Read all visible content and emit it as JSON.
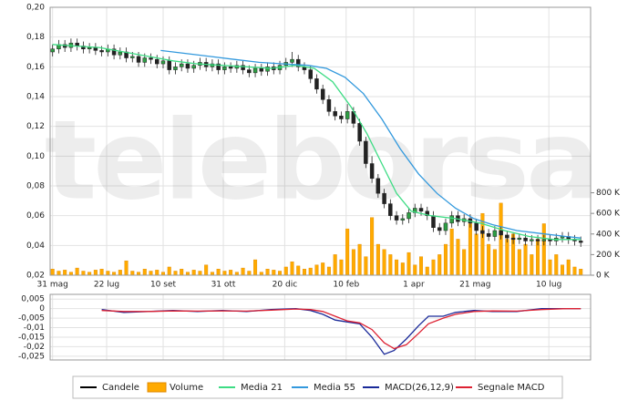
{
  "chart_data": [
    {
      "type": "candlestick",
      "watermark": "teleborsa",
      "grid": true,
      "xlim": [
        0,
        440
      ],
      "xticks": [
        {
          "value": 2,
          "label": "31 mag"
        },
        {
          "value": 46,
          "label": "22 lug"
        },
        {
          "value": 92,
          "label": "10 set"
        },
        {
          "value": 141,
          "label": "31 ott"
        },
        {
          "value": 191,
          "label": "20 dic"
        },
        {
          "value": 241,
          "label": "10 feb"
        },
        {
          "value": 296,
          "label": "1 apr"
        },
        {
          "value": 346,
          "label": "21 mag"
        },
        {
          "value": 406,
          "label": "10 lug"
        }
      ],
      "ylim": [
        0.02,
        0.2
      ],
      "yticks": [
        {
          "value": 0.02,
          "label": "0,02"
        },
        {
          "value": 0.04,
          "label": "0,04"
        },
        {
          "value": 0.06,
          "label": "0,06"
        },
        {
          "value": 0.08,
          "label": "0,08"
        },
        {
          "value": 0.1,
          "label": "0,10"
        },
        {
          "value": 0.12,
          "label": "0,12"
        },
        {
          "value": 0.14,
          "label": "0,14"
        },
        {
          "value": 0.16,
          "label": "0,16"
        },
        {
          "value": 0.18,
          "label": "0,18"
        },
        {
          "value": 0.2,
          "label": "0,20"
        }
      ],
      "y2lim": [
        0,
        2600000
      ],
      "y2ticks": [
        {
          "value": 0,
          "label": "0 K"
        },
        {
          "value": 200000,
          "label": "200 K"
        },
        {
          "value": 400000,
          "label": "400 K"
        },
        {
          "value": 600000,
          "label": "600 K"
        },
        {
          "value": 800000,
          "label": "800 K"
        }
      ],
      "series": [
        {
          "name": "Candele",
          "type": "candlestick",
          "color": "#000000",
          "color_up": "#2e9e44",
          "color_down": "#222222",
          "x": [
            2,
            7,
            12,
            17,
            22,
            27,
            32,
            37,
            42,
            47,
            52,
            57,
            62,
            67,
            72,
            77,
            82,
            87,
            92,
            97,
            102,
            107,
            112,
            117,
            122,
            127,
            132,
            137,
            142,
            147,
            152,
            157,
            162,
            167,
            172,
            177,
            182,
            187,
            192,
            197,
            202,
            207,
            212,
            217,
            222,
            227,
            232,
            237,
            242,
            247,
            252,
            257,
            262,
            267,
            272,
            277,
            282,
            287,
            292,
            297,
            302,
            307,
            312,
            317,
            322,
            327,
            332,
            337,
            342,
            347,
            352,
            357,
            362,
            367,
            372,
            377,
            382,
            387,
            392,
            397,
            402,
            407,
            412,
            417,
            422,
            427,
            432
          ],
          "open": [
            0.17,
            0.172,
            0.175,
            0.173,
            0.176,
            0.174,
            0.172,
            0.173,
            0.171,
            0.17,
            0.172,
            0.168,
            0.17,
            0.166,
            0.167,
            0.163,
            0.166,
            0.165,
            0.162,
            0.164,
            0.158,
            0.16,
            0.162,
            0.159,
            0.161,
            0.163,
            0.16,
            0.162,
            0.158,
            0.16,
            0.159,
            0.161,
            0.158,
            0.156,
            0.159,
            0.157,
            0.16,
            0.158,
            0.161,
            0.163,
            0.165,
            0.16,
            0.158,
            0.152,
            0.145,
            0.138,
            0.13,
            0.127,
            0.125,
            0.13,
            0.122,
            0.11,
            0.095,
            0.085,
            0.075,
            0.068,
            0.06,
            0.057,
            0.058,
            0.062,
            0.065,
            0.063,
            0.06,
            0.052,
            0.05,
            0.055,
            0.06,
            0.056,
            0.058,
            0.055,
            0.05,
            0.048,
            0.046,
            0.05,
            0.047,
            0.045,
            0.044,
            0.045,
            0.043,
            0.044,
            0.043,
            0.044,
            0.043,
            0.045,
            0.046,
            0.044,
            0.043
          ],
          "high": [
            0.175,
            0.178,
            0.178,
            0.179,
            0.179,
            0.177,
            0.176,
            0.176,
            0.174,
            0.175,
            0.175,
            0.173,
            0.173,
            0.17,
            0.17,
            0.169,
            0.169,
            0.168,
            0.167,
            0.167,
            0.163,
            0.165,
            0.165,
            0.164,
            0.166,
            0.166,
            0.165,
            0.165,
            0.163,
            0.163,
            0.164,
            0.164,
            0.161,
            0.162,
            0.162,
            0.163,
            0.163,
            0.164,
            0.166,
            0.17,
            0.168,
            0.163,
            0.161,
            0.155,
            0.148,
            0.141,
            0.133,
            0.13,
            0.135,
            0.133,
            0.125,
            0.113,
            0.1,
            0.088,
            0.078,
            0.071,
            0.063,
            0.061,
            0.065,
            0.068,
            0.068,
            0.066,
            0.063,
            0.055,
            0.058,
            0.063,
            0.063,
            0.061,
            0.061,
            0.058,
            0.053,
            0.051,
            0.053,
            0.053,
            0.05,
            0.048,
            0.048,
            0.048,
            0.047,
            0.047,
            0.047,
            0.047,
            0.048,
            0.049,
            0.049,
            0.047,
            0.046
          ],
          "low": [
            0.167,
            0.169,
            0.17,
            0.17,
            0.171,
            0.169,
            0.169,
            0.168,
            0.167,
            0.167,
            0.165,
            0.165,
            0.163,
            0.163,
            0.16,
            0.16,
            0.162,
            0.159,
            0.159,
            0.155,
            0.155,
            0.157,
            0.156,
            0.156,
            0.158,
            0.157,
            0.157,
            0.155,
            0.155,
            0.156,
            0.156,
            0.155,
            0.153,
            0.153,
            0.154,
            0.154,
            0.155,
            0.155,
            0.158,
            0.16,
            0.157,
            0.155,
            0.149,
            0.142,
            0.135,
            0.127,
            0.124,
            0.122,
            0.122,
            0.119,
            0.107,
            0.092,
            0.082,
            0.072,
            0.065,
            0.057,
            0.054,
            0.054,
            0.055,
            0.059,
            0.06,
            0.057,
            0.049,
            0.047,
            0.047,
            0.052,
            0.053,
            0.053,
            0.052,
            0.047,
            0.045,
            0.043,
            0.043,
            0.044,
            0.042,
            0.041,
            0.041,
            0.04,
            0.04,
            0.04,
            0.04,
            0.04,
            0.04,
            0.042,
            0.041,
            0.04,
            0.039
          ],
          "close": [
            0.172,
            0.175,
            0.173,
            0.176,
            0.174,
            0.172,
            0.173,
            0.171,
            0.17,
            0.172,
            0.168,
            0.17,
            0.166,
            0.167,
            0.163,
            0.166,
            0.165,
            0.162,
            0.164,
            0.158,
            0.16,
            0.162,
            0.159,
            0.161,
            0.163,
            0.16,
            0.162,
            0.158,
            0.16,
            0.159,
            0.161,
            0.158,
            0.156,
            0.159,
            0.157,
            0.16,
            0.158,
            0.161,
            0.163,
            0.165,
            0.16,
            0.158,
            0.152,
            0.145,
            0.138,
            0.13,
            0.127,
            0.125,
            0.13,
            0.122,
            0.11,
            0.095,
            0.085,
            0.075,
            0.068,
            0.06,
            0.057,
            0.058,
            0.062,
            0.065,
            0.063,
            0.06,
            0.052,
            0.05,
            0.055,
            0.06,
            0.056,
            0.058,
            0.055,
            0.05,
            0.048,
            0.046,
            0.05,
            0.047,
            0.045,
            0.044,
            0.045,
            0.043,
            0.044,
            0.043,
            0.044,
            0.043,
            0.045,
            0.046,
            0.044,
            0.043,
            0.042
          ]
        },
        {
          "name": "Volume",
          "type": "bar",
          "axis": "y2",
          "color": "#ffaa00",
          "x": [
            2,
            7,
            12,
            17,
            22,
            27,
            32,
            37,
            42,
            47,
            52,
            57,
            62,
            67,
            72,
            77,
            82,
            87,
            92,
            97,
            102,
            107,
            112,
            117,
            122,
            127,
            132,
            137,
            142,
            147,
            152,
            157,
            162,
            167,
            172,
            177,
            182,
            187,
            192,
            197,
            202,
            207,
            212,
            217,
            222,
            227,
            232,
            237,
            242,
            247,
            252,
            257,
            262,
            267,
            272,
            277,
            282,
            287,
            292,
            297,
            302,
            307,
            312,
            317,
            322,
            327,
            332,
            337,
            342,
            347,
            352,
            357,
            362,
            367,
            372,
            377,
            382,
            387,
            392,
            397,
            402,
            407,
            412,
            417,
            422,
            427,
            432
          ],
          "values": [
            60000,
            40000,
            50000,
            30000,
            70000,
            40000,
            30000,
            50000,
            60000,
            40000,
            30000,
            50000,
            140000,
            40000,
            30000,
            60000,
            40000,
            50000,
            30000,
            80000,
            40000,
            60000,
            30000,
            50000,
            40000,
            100000,
            30000,
            60000,
            40000,
            50000,
            30000,
            70000,
            40000,
            150000,
            30000,
            60000,
            50000,
            40000,
            80000,
            130000,
            90000,
            60000,
            70000,
            100000,
            120000,
            80000,
            200000,
            150000,
            450000,
            250000,
            300000,
            180000,
            560000,
            300000,
            250000,
            200000,
            150000,
            120000,
            220000,
            100000,
            180000,
            80000,
            150000,
            200000,
            300000,
            450000,
            350000,
            250000,
            500000,
            400000,
            600000,
            300000,
            250000,
            700000,
            350000,
            400000,
            250000,
            300000,
            200000,
            350000,
            500000,
            150000,
            200000,
            100000,
            150000,
            80000,
            60000
          ]
        },
        {
          "name": "Media 21",
          "type": "line",
          "color": "#3ddc84",
          "x": [
            2,
            20,
            40,
            60,
            80,
            100,
            120,
            140,
            160,
            180,
            200,
            215,
            230,
            245,
            258,
            270,
            282,
            294,
            310,
            330,
            350,
            370,
            390,
            410,
            432
          ],
          "values": [
            0.175,
            0.174,
            0.173,
            0.17,
            0.167,
            0.164,
            0.162,
            0.161,
            0.16,
            0.159,
            0.161,
            0.159,
            0.15,
            0.133,
            0.115,
            0.095,
            0.075,
            0.063,
            0.06,
            0.058,
            0.055,
            0.05,
            0.046,
            0.044,
            0.044
          ]
        },
        {
          "name": "Media 55",
          "type": "line",
          "color": "#3399dd",
          "x": [
            90,
            110,
            130,
            150,
            170,
            190,
            210,
            225,
            240,
            255,
            270,
            285,
            300,
            315,
            330,
            345,
            360,
            380,
            400,
            420,
            432
          ],
          "values": [
            0.171,
            0.169,
            0.167,
            0.165,
            0.163,
            0.162,
            0.161,
            0.159,
            0.153,
            0.142,
            0.125,
            0.105,
            0.088,
            0.075,
            0.065,
            0.058,
            0.054,
            0.05,
            0.048,
            0.046,
            0.045
          ]
        }
      ]
    },
    {
      "type": "line",
      "xlim": [
        0,
        440
      ],
      "ylim": [
        -0.027,
        0.0075
      ],
      "yticks": [
        {
          "value": -0.025,
          "label": "-0,025"
        },
        {
          "value": -0.02,
          "label": "-0,02"
        },
        {
          "value": -0.015,
          "label": "-0,015"
        },
        {
          "value": -0.01,
          "label": "-0,01"
        },
        {
          "value": -0.005,
          "label": "-0,005"
        },
        0,
        {
          "value": 0.005,
          "label": "0,005"
        }
      ],
      "series": [
        {
          "name": "MACD(26,12,9)",
          "color": "#1a2a99",
          "x": [
            42,
            60,
            80,
            100,
            120,
            140,
            160,
            180,
            200,
            212,
            222,
            232,
            242,
            252,
            262,
            272,
            280,
            290,
            300,
            308,
            320,
            330,
            345,
            360,
            380,
            400,
            420,
            432
          ],
          "values": [
            -0.0005,
            -0.002,
            -0.0015,
            -0.001,
            -0.0015,
            -0.001,
            -0.0015,
            -0.0005,
            0,
            -0.001,
            -0.003,
            -0.006,
            -0.007,
            -0.008,
            -0.015,
            -0.024,
            -0.022,
            -0.016,
            -0.009,
            -0.004,
            -0.004,
            -0.002,
            -0.001,
            -0.0015,
            -0.0015,
            0,
            0,
            0
          ]
        },
        {
          "name": "Segnale MACD",
          "color": "#dd2233",
          "x": [
            42,
            60,
            80,
            100,
            120,
            140,
            160,
            180,
            200,
            212,
            222,
            232,
            242,
            252,
            262,
            272,
            280,
            290,
            300,
            308,
            320,
            330,
            345,
            360,
            380,
            400,
            420,
            432
          ],
          "values": [
            -0.001,
            -0.0015,
            -0.0015,
            -0.0012,
            -0.0013,
            -0.0012,
            -0.0013,
            -0.0008,
            -0.0002,
            -0.0005,
            -0.0015,
            -0.004,
            -0.0065,
            -0.0075,
            -0.011,
            -0.018,
            -0.021,
            -0.019,
            -0.013,
            -0.008,
            -0.005,
            -0.003,
            -0.0015,
            -0.0012,
            -0.0013,
            -0.0005,
            0,
            0
          ]
        }
      ]
    }
  ]
}
